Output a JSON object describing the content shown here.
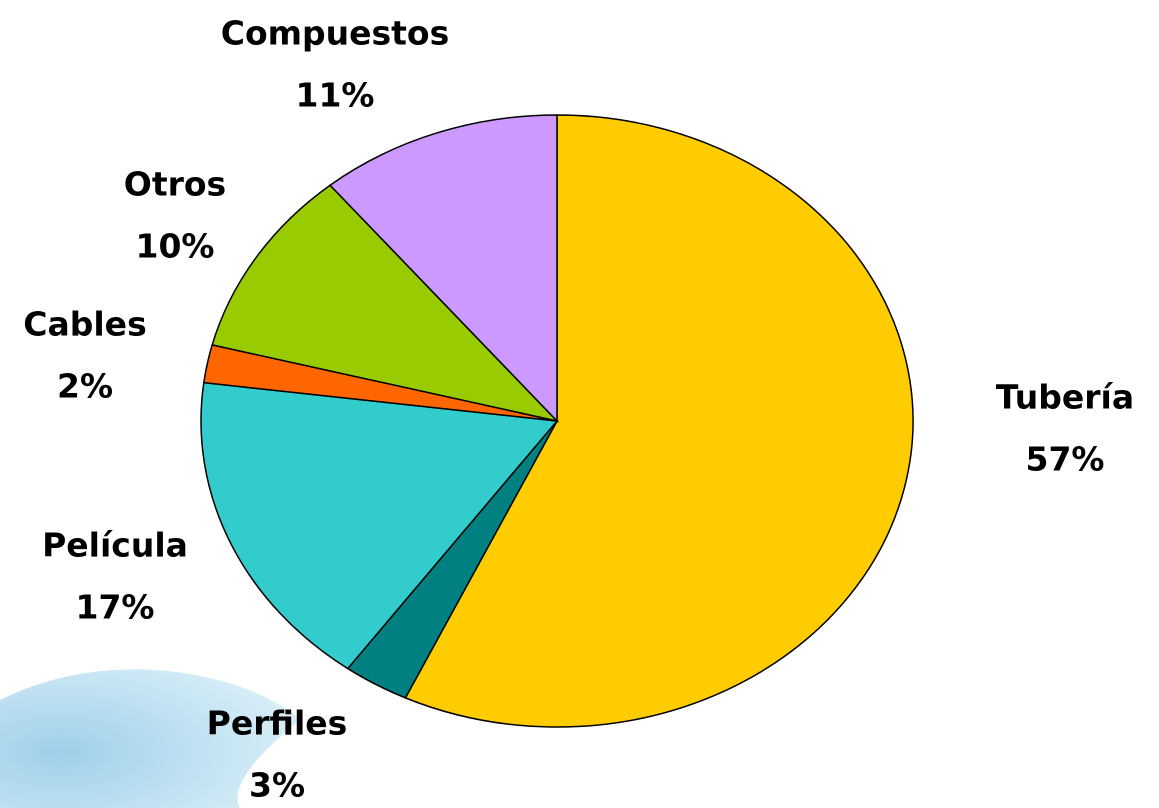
{
  "chart_data": {
    "type": "pie",
    "categories": [
      "Tubería",
      "Perfiles",
      "Película",
      "Cables",
      "Otros",
      "Compuestos"
    ],
    "values": [
      57,
      3,
      17,
      2,
      10,
      11
    ],
    "value_labels": [
      "57%",
      "3%",
      "17%",
      "2%",
      "10%",
      "11%"
    ],
    "colors": [
      "#FFCC00",
      "#008080",
      "#33CCCC",
      "#FF6600",
      "#99CC00",
      "#CC99FF"
    ]
  }
}
